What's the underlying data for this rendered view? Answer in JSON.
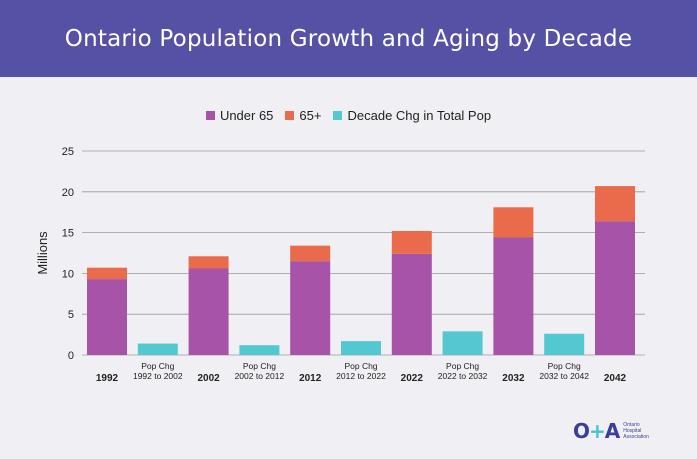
{
  "title": "Ontario Population Growth and Aging by Decade",
  "logo": {
    "mark_left": "O",
    "mark_plus": "+",
    "mark_right": "A",
    "line1": "Ontario",
    "line2": "Hospital",
    "line3": "Association"
  },
  "colors": {
    "under65": "#a653a8",
    "over65": "#ea6b4c",
    "change": "#53c8d1",
    "header": "#5551a5"
  },
  "chart_data": {
    "type": "bar",
    "stacked": true,
    "ylabel": "Millions",
    "ylim": [
      0,
      25
    ],
    "yticks": [
      0,
      5,
      10,
      15,
      20,
      25
    ],
    "grid": true,
    "legend_position": "top-center",
    "legend": [
      "Under 65",
      "65+",
      "Decade Chg in Total Pop"
    ],
    "categories": [
      {
        "label": "1992",
        "sub": ""
      },
      {
        "label": "Pop Chg",
        "sub": "1992 to 2002"
      },
      {
        "label": "2002",
        "sub": ""
      },
      {
        "label": "Pop Chg",
        "sub": "2002 to 2012"
      },
      {
        "label": "2012",
        "sub": ""
      },
      {
        "label": "Pop Chg",
        "sub": "2012 to 2022"
      },
      {
        "label": "2022",
        "sub": ""
      },
      {
        "label": "Pop Chg",
        "sub": "2022 to 2032"
      },
      {
        "label": "2032",
        "sub": ""
      },
      {
        "label": "Pop Chg",
        "sub": "2032 to 2042"
      },
      {
        "label": "2042",
        "sub": ""
      }
    ],
    "series": [
      {
        "name": "Under 65",
        "values": [
          9.3,
          0,
          10.6,
          0,
          11.5,
          0,
          12.4,
          0,
          14.4,
          0,
          16.4
        ]
      },
      {
        "name": "65+",
        "values": [
          1.4,
          0,
          1.5,
          0,
          1.9,
          0,
          2.8,
          0,
          3.7,
          0,
          4.3
        ]
      },
      {
        "name": "Decade Chg in Total Pop",
        "values": [
          0,
          1.4,
          0,
          1.2,
          0,
          1.7,
          0,
          2.9,
          0,
          2.6,
          0
        ]
      }
    ]
  }
}
